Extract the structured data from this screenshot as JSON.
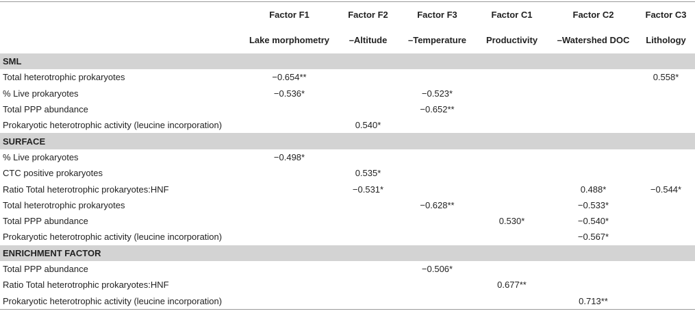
{
  "header": {
    "columns": [
      {
        "factor": "Factor F1",
        "description": "Lake morphometry"
      },
      {
        "factor": "Factor F2",
        "description": "–Altitude"
      },
      {
        "factor": "Factor F3",
        "description": "–Temperature"
      },
      {
        "factor": "Factor C1",
        "description": "Productivity"
      },
      {
        "factor": "Factor C2",
        "description": "–Watershed DOC"
      },
      {
        "factor": "Factor C3",
        "description": "Lithology"
      }
    ]
  },
  "sections": [
    {
      "title": "SML",
      "rows": [
        {
          "label": "Total heterotrophic prokaryotes",
          "values": [
            "−0.654**",
            null,
            null,
            null,
            null,
            "0.558*"
          ]
        },
        {
          "label": "% Live prokaryotes",
          "values": [
            "−0.536*",
            null,
            "−0.523*",
            null,
            null,
            null
          ]
        },
        {
          "label": "Total PPP abundance",
          "values": [
            null,
            null,
            "−0.652**",
            null,
            null,
            null
          ]
        },
        {
          "label": "Prokaryotic heterotrophic activity (leucine incorporation)",
          "values": [
            null,
            "0.540*",
            null,
            null,
            null,
            null
          ]
        }
      ]
    },
    {
      "title": "SURFACE",
      "rows": [
        {
          "label": "% Live prokaryotes",
          "values": [
            "−0.498*",
            null,
            null,
            null,
            null,
            null
          ]
        },
        {
          "label": "CTC positive prokaryotes",
          "values": [
            null,
            "0.535*",
            null,
            null,
            null,
            null
          ]
        },
        {
          "label": "Ratio Total heterotrophic prokaryotes:HNF",
          "values": [
            null,
            "−0.531*",
            null,
            null,
            "0.488*",
            "−0.544*"
          ]
        },
        {
          "label": "Total heterotrophic prokaryotes",
          "values": [
            null,
            null,
            "−0.628**",
            null,
            "−0.533*",
            null
          ]
        },
        {
          "label": "Total PPP abundance",
          "values": [
            null,
            null,
            null,
            "0.530*",
            "−0.540*",
            null
          ]
        },
        {
          "label": "Prokaryotic heterotrophic activity (leucine incorporation)",
          "values": [
            null,
            null,
            null,
            null,
            "−0.567*",
            null
          ]
        }
      ]
    },
    {
      "title": "ENRICHMENT FACTOR",
      "rows": [
        {
          "label": "Total PPP abundance",
          "values": [
            null,
            null,
            "−0.506*",
            null,
            null,
            null
          ]
        },
        {
          "label": "Ratio Total heterotrophic prokaryotes:HNF",
          "values": [
            null,
            null,
            null,
            "0.677**",
            null,
            null
          ]
        },
        {
          "label": "Prokaryotic heterotrophic activity (leucine incorporation)",
          "values": [
            null,
            null,
            null,
            null,
            "0.713**",
            null
          ]
        }
      ]
    }
  ]
}
